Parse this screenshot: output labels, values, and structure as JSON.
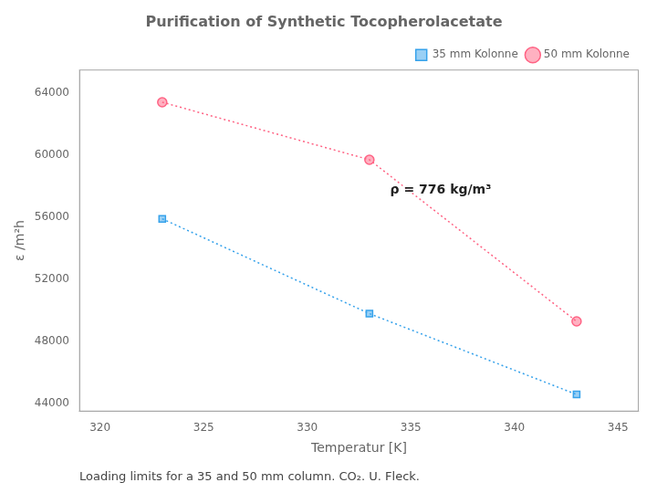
{
  "chart_data": {
    "type": "line",
    "title": "Purification of Synthetic Tocopherolacetate",
    "x_label": "Temperatur [K]",
    "y_label": "ε /m²h",
    "x": [
      323,
      333,
      343
    ],
    "series": [
      {
        "name": "35 mm Kolonne",
        "values": [
          55900,
          49800,
          44600
        ],
        "marker": "square",
        "line_style": "dotted"
      },
      {
        "name": "50 mm Kolonne",
        "values": [
          63400,
          59700,
          49300
        ],
        "marker": "circle",
        "line_style": "dotted"
      }
    ],
    "xlim": [
      319,
      346
    ],
    "ylim": [
      43500,
      65500
    ],
    "xticks": [
      320,
      325,
      330,
      335,
      340,
      345
    ],
    "yticks": [
      44000,
      48000,
      52000,
      56000,
      60000,
      64000
    ],
    "annotations": [
      {
        "text": "ρ = 776 kg/m³",
        "x": 334,
        "y": 57500
      },
      {
        "text": "Loading limits for a 35 and 50 mm column. CO₂. U. Fleck."
      }
    ],
    "grid": false,
    "legend": "upper right"
  }
}
